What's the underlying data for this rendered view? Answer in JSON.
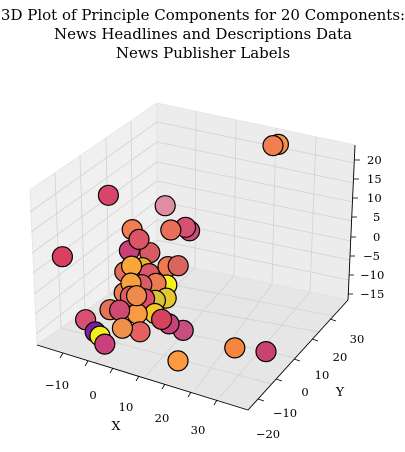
{
  "chart_data": {
    "type": "scatter3d",
    "title": [
      "3D Plot of Principle Components for 20 Components:",
      "News Headlines and Descriptions Data",
      "News Publisher Labels"
    ],
    "xlabel": "X",
    "ylabel": "Y",
    "zlabel": "",
    "xticks": [
      "−10",
      "0",
      "10",
      "20",
      "30"
    ],
    "yticks": [
      "−20",
      "−10",
      "0",
      "10",
      "20",
      "30"
    ],
    "zticks": [
      "20",
      "15",
      "10",
      "5",
      "0",
      "−5",
      "−10",
      "−15"
    ],
    "colormap": "plasma",
    "points": [
      {
        "x": -14,
        "y": 2,
        "z": 16,
        "color": "#d7466a"
      },
      {
        "x": -2,
        "y": 10,
        "z": 12,
        "color": "#e08da3"
      },
      {
        "x": 15,
        "y": 35,
        "z": 18,
        "color": "#f07f4f"
      },
      {
        "x": 16,
        "y": 36,
        "z": 18,
        "color": "#f79044"
      },
      {
        "x": 4,
        "y": 10,
        "z": 8,
        "color": "#d8506f"
      },
      {
        "x": 4,
        "y": 12,
        "z": 6,
        "color": "#c84c7c"
      },
      {
        "x": 2,
        "y": 6,
        "z": 9,
        "color": "#ea6f5a"
      },
      {
        "x": -7,
        "y": 2,
        "z": 9,
        "color": "#ef7e50"
      },
      {
        "x": -5,
        "y": 2,
        "z": 7,
        "color": "#dc5566"
      },
      {
        "x": -3,
        "y": 4,
        "z": 3,
        "color": "#d95a63"
      },
      {
        "x": -9,
        "y": 4,
        "z": 2,
        "color": "#c8407a"
      },
      {
        "x": -6,
        "y": 0,
        "z": 1,
        "color": "#fca53a"
      },
      {
        "x": -4,
        "y": 2,
        "z": 0,
        "color": "#e7b52a"
      },
      {
        "x": -2,
        "y": 2,
        "z": -1,
        "color": "#d95766"
      },
      {
        "x": -8,
        "y": 0,
        "z": -1,
        "color": "#e36c5a"
      },
      {
        "x": -5,
        "y": -2,
        "z": -2,
        "color": "#f5a23c"
      },
      {
        "x": -3,
        "y": 0,
        "z": -3,
        "color": "#d95c65"
      },
      {
        "x": 0,
        "y": 2,
        "z": -3,
        "color": "#ea7b53"
      },
      {
        "x": 2,
        "y": 4,
        "z": -4,
        "color": "#f4f021"
      },
      {
        "x": -4,
        "y": -4,
        "z": -4,
        "color": "#dd5d60"
      },
      {
        "x": -7,
        "y": -2,
        "z": -5,
        "color": "#ec7f52"
      },
      {
        "x": -1,
        "y": -2,
        "z": -5,
        "color": "#e04e68"
      },
      {
        "x": 1,
        "y": 0,
        "z": -6,
        "color": "#d7c43a"
      },
      {
        "x": 3,
        "y": 2,
        "z": -6,
        "color": "#e6c530"
      },
      {
        "x": -6,
        "y": -6,
        "z": -7,
        "color": "#cf4a72"
      },
      {
        "x": -2,
        "y": -4,
        "z": -8,
        "color": "#fa9b41"
      },
      {
        "x": 2,
        "y": -2,
        "z": -8,
        "color": "#f5c827"
      },
      {
        "x": -10,
        "y": -4,
        "z": -9,
        "color": "#e57254"
      },
      {
        "x": -4,
        "y": -8,
        "z": -10,
        "color": "#f0914b"
      },
      {
        "x": 0,
        "y": -6,
        "z": -11,
        "color": "#e56160"
      },
      {
        "x": 5,
        "y": 0,
        "z": -11,
        "color": "#c9417c"
      },
      {
        "x": -16,
        "y": -6,
        "z": -12,
        "color": "#d75070"
      },
      {
        "x": -12,
        "y": -8,
        "z": -13,
        "color": "#7c1fa0"
      },
      {
        "x": -10,
        "y": -9,
        "z": -13,
        "color": "#f1f01e"
      },
      {
        "x": -8,
        "y": -10,
        "z": -14,
        "color": "#c9417c"
      },
      {
        "x": 8,
        "y": 2,
        "z": -13,
        "color": "#c94e80"
      },
      {
        "x": 10,
        "y": -4,
        "z": -17,
        "color": "#fb9a3f"
      },
      {
        "x": 22,
        "y": 4,
        "z": -15,
        "color": "#f5853f"
      },
      {
        "x": 30,
        "y": 6,
        "z": -15,
        "color": "#c9436f"
      },
      {
        "x": -24,
        "y": -4,
        "z": 1,
        "color": "#d7405f"
      },
      {
        "x": 0,
        "y": 8,
        "z": -2,
        "color": "#f07a50"
      },
      {
        "x": 3,
        "y": 8,
        "z": -1,
        "color": "#d9655d"
      },
      {
        "x": -1,
        "y": -6,
        "z": -2,
        "color": "#f08a4c"
      },
      {
        "x": 4,
        "y": -2,
        "z": -9,
        "color": "#d5435c"
      }
    ]
  }
}
